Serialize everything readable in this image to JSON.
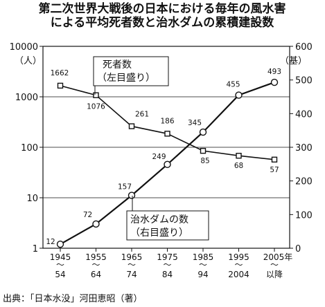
{
  "title_line1": "第二次世界大戦後の日本における毎年の風水害",
  "title_line2": "による平均死者数と治水ダムの累積建設数",
  "source": "出典：「日本水没」河田恵昭（著）",
  "chart_data": {
    "type": "line",
    "categories_top": [
      "1945",
      "1955",
      "1965",
      "1975",
      "1985",
      "1995",
      "2005年"
    ],
    "categories_bottom": [
      "54",
      "64",
      "74",
      "84",
      "94",
      "2004",
      "以降"
    ],
    "left_axis": {
      "unit_label": "（人）",
      "scale": "log",
      "ylim": [
        1,
        10000
      ],
      "ticks": [
        1,
        10,
        100,
        1000,
        10000
      ],
      "tick_labels": [
        "1",
        "10",
        "100",
        "1000",
        "10000"
      ]
    },
    "right_axis": {
      "unit_label": "（基）",
      "scale": "linear",
      "ylim": [
        0,
        600
      ],
      "ticks": [
        0,
        100,
        200,
        300,
        400,
        500,
        600
      ],
      "tick_labels": [
        "0",
        "100",
        "200",
        "300",
        "400",
        "500",
        "600"
      ]
    },
    "grid": "horizontal",
    "series": [
      {
        "name_line1": "死者数",
        "name_line2": "（左目盛り）",
        "axis": "left",
        "marker": "square",
        "values": [
          1662,
          1076,
          261,
          186,
          85,
          68,
          57
        ],
        "labels": [
          "1662",
          "1076",
          "261",
          "186",
          "85",
          "68",
          "57"
        ]
      },
      {
        "name_line1": "治水ダムの数",
        "name_line2": "（右目盛り）",
        "axis": "right",
        "marker": "circle",
        "values": [
          12,
          72,
          157,
          249,
          345,
          455,
          493
        ],
        "labels": [
          "12",
          "72",
          "157",
          "249",
          "345",
          "455",
          "493"
        ]
      }
    ]
  }
}
